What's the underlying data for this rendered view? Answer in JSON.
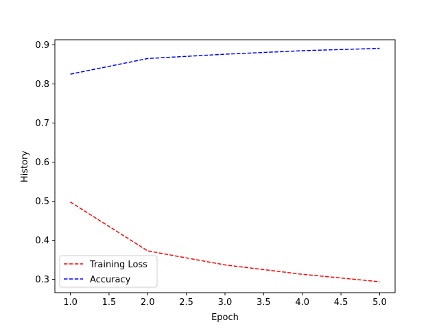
{
  "chart_data": {
    "type": "line",
    "title": "",
    "xlabel": "Epoch",
    "ylabel": "History",
    "x": [
      1.0,
      2.0,
      3.0,
      4.0,
      5.0
    ],
    "xlim": [
      0.8,
      5.2
    ],
    "ylim": [
      0.266,
      0.913
    ],
    "xticks": [
      1.0,
      1.5,
      2.0,
      2.5,
      3.0,
      3.5,
      4.0,
      4.5,
      5.0
    ],
    "xtick_labels": [
      "1.0",
      "1.5",
      "2.0",
      "2.5",
      "3.0",
      "3.5",
      "4.0",
      "4.5",
      "5.0"
    ],
    "yticks": [
      0.3,
      0.4,
      0.5,
      0.6,
      0.7,
      0.8,
      0.9
    ],
    "ytick_labels": [
      "0.3",
      "0.4",
      "0.5",
      "0.6",
      "0.7",
      "0.8",
      "0.9"
    ],
    "grid": false,
    "legend_position": "lower-left",
    "series": [
      {
        "name": "Training Loss",
        "color": "#ff0000",
        "linestyle": "dashed",
        "values": [
          0.498,
          0.373,
          0.337,
          0.313,
          0.294
        ]
      },
      {
        "name": "Accuracy",
        "color": "#0000ff",
        "linestyle": "dashed",
        "values": [
          0.825,
          0.865,
          0.876,
          0.885,
          0.891
        ]
      }
    ]
  }
}
